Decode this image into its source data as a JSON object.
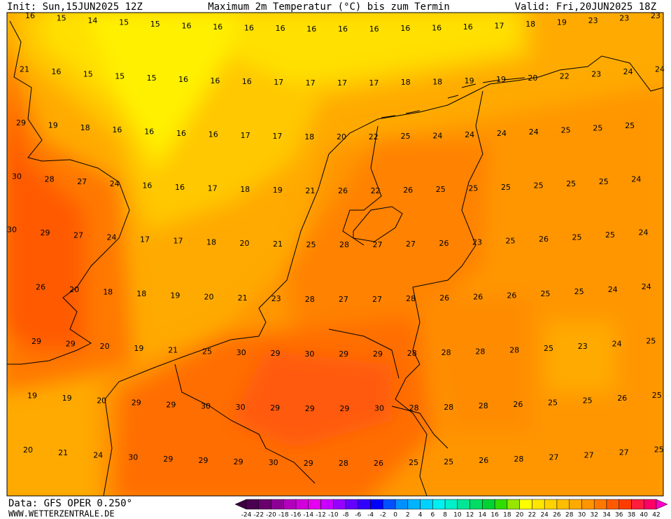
{
  "header": {
    "init": "Init: Sun,15JUN2025 12Z",
    "title": "Maximum 2m Temperatur (°C) bis zum Termin",
    "valid": "Valid: Fri,20JUN2025 18Z"
  },
  "grid": {
    "rows": [
      [
        16,
        15,
        14,
        15,
        15,
        16,
        16,
        16,
        16,
        16,
        16,
        16,
        16,
        16,
        16,
        17,
        18,
        19,
        23,
        23,
        23
      ],
      [
        21,
        16,
        15,
        15,
        15,
        16,
        16,
        16,
        17,
        17,
        17,
        17,
        18,
        18,
        19,
        19,
        20,
        22,
        23,
        24,
        24
      ],
      [
        29,
        19,
        18,
        16,
        16,
        16,
        16,
        17,
        17,
        18,
        20,
        22,
        25,
        24,
        24,
        24,
        24,
        25,
        25,
        25
      ],
      [
        30,
        28,
        27,
        24,
        16,
        16,
        17,
        18,
        19,
        21,
        26,
        22,
        26,
        25,
        25,
        25,
        25,
        25,
        25,
        24
      ],
      [
        30,
        29,
        27,
        24,
        17,
        17,
        18,
        20,
        21,
        25,
        28,
        27,
        27,
        26,
        23,
        25,
        26,
        25,
        25,
        24
      ],
      [
        26,
        20,
        18,
        18,
        19,
        20,
        21,
        23,
        28,
        27,
        27,
        28,
        26,
        26,
        26,
        25,
        25,
        24,
        24
      ],
      [
        29,
        29,
        20,
        19,
        21,
        25,
        30,
        29,
        30,
        29,
        29,
        28,
        28,
        28,
        28,
        25,
        23,
        24,
        25
      ],
      [
        19,
        19,
        20,
        29,
        29,
        30,
        30,
        29,
        29,
        29,
        30,
        28,
        28,
        28,
        26,
        25,
        25,
        26,
        25
      ],
      [
        20,
        21,
        24,
        30,
        29,
        29,
        29,
        30,
        29,
        28,
        26,
        25,
        25,
        26,
        28,
        27,
        27,
        27,
        25
      ]
    ]
  },
  "scale": {
    "labels": [
      -24,
      -22,
      -20,
      -18,
      -16,
      -14,
      -12,
      -10,
      -8,
      -6,
      -4,
      -2,
      0,
      2,
      4,
      6,
      8,
      10,
      12,
      14,
      16,
      18,
      20,
      22,
      24,
      26,
      28,
      30,
      32,
      34,
      36,
      38,
      40,
      42
    ]
  },
  "footer": {
    "data": "Data: GFS OPER 0.250°",
    "site": "WWW.WETTERZENTRALE.DE"
  }
}
